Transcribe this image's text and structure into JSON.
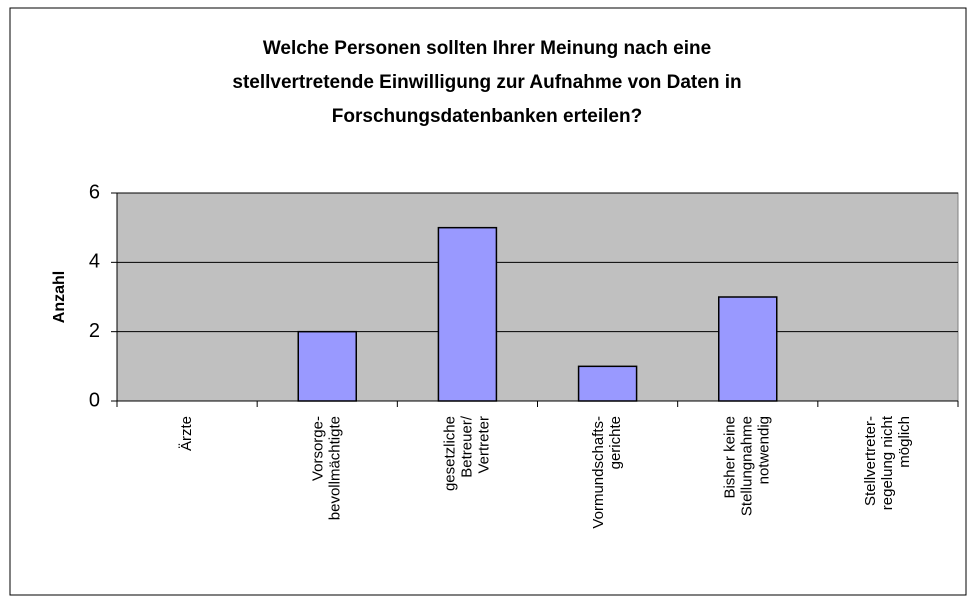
{
  "chart_data": {
    "type": "bar",
    "title": [
      "Welche Personen sollten Ihrer Meinung nach eine",
      "stellvertretende Einwilligung zur Aufnahme von Daten in",
      "Forschungsdatenbanken erteilen?"
    ],
    "y_label": "Anzahl",
    "categories": [
      [
        "Ärzte"
      ],
      [
        "Vorsorge-",
        "bevollmächtigte"
      ],
      [
        "gesetzliche",
        "Betreuer/",
        "Vertreter"
      ],
      [
        "Vormundschafts-",
        "gerichte"
      ],
      [
        "Bisher keine",
        "Stellungnahme",
        "notwendig"
      ],
      [
        "Stellvertreter-",
        "regelung nicht",
        "möglich"
      ]
    ],
    "values": [
      0,
      2,
      5,
      1,
      3,
      0
    ],
    "color": "#9999ff",
    "ylim": [
      0,
      6
    ],
    "yticks": [
      0,
      2,
      4,
      6
    ],
    "grid": true
  }
}
